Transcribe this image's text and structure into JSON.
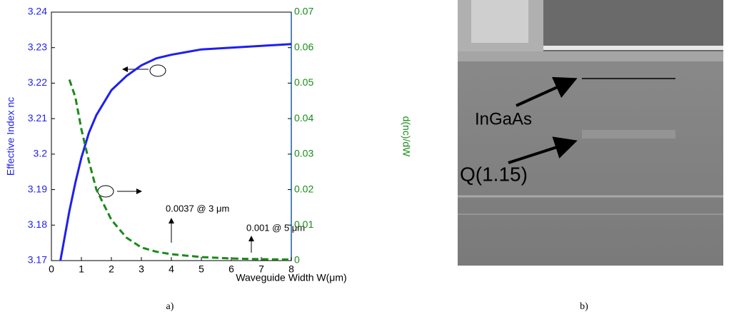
{
  "chart_data": {
    "type": "line",
    "xlabel": "Waveguide Width W(μm)",
    "ylabel": "Effective Index nc",
    "y2label": "d(nc)/dW",
    "x": [
      0.3,
      0.6,
      0.8,
      1,
      1.25,
      1.5,
      2,
      2.5,
      3,
      3.5,
      4,
      5,
      6,
      7,
      8
    ],
    "series": [
      {
        "name": "Effective Index nc",
        "color": "#1f1fef",
        "values": [
          3.17,
          3.184,
          3.192,
          3.199,
          3.206,
          3.211,
          3.218,
          3.222,
          3.225,
          3.227,
          3.228,
          3.2295,
          3.23,
          3.2305,
          3.231
        ]
      },
      {
        "name": "d(nc)/dW",
        "color": "#1a8a1a",
        "axis": "y2",
        "values": [
          null,
          0.051,
          0.046,
          0.037,
          0.028,
          0.02,
          0.0115,
          0.0065,
          0.0037,
          0.0025,
          0.0018,
          0.001,
          0.0006,
          0.0004,
          0.0003
        ]
      }
    ],
    "xlim": [
      0,
      8
    ],
    "xticks": [
      0,
      1,
      2,
      3,
      4,
      5,
      6,
      7,
      8
    ],
    "ylim": [
      3.17,
      3.24
    ],
    "yticks": [
      3.17,
      3.18,
      3.19,
      3.2,
      3.21,
      3.22,
      3.23,
      3.24
    ],
    "y2lim": [
      0,
      0.07
    ],
    "y2ticks": [
      0,
      0.01,
      0.02,
      0.03,
      0.04,
      0.05,
      0.06,
      0.07
    ],
    "annotations": [
      "0.0037 @ 3 μm",
      "0.001 @ 5 μm"
    ]
  },
  "figure": {
    "panel_labels": [
      "a)",
      "b)"
    ],
    "micrograph_labels": [
      "InGaAs",
      "Q(1.15)"
    ]
  }
}
